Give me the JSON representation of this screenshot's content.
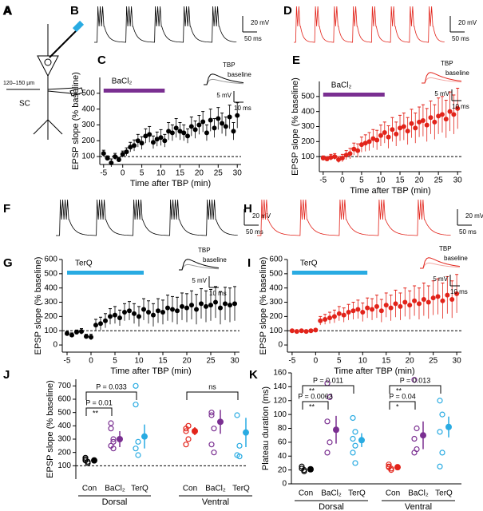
{
  "schematic": {
    "letter": "A",
    "distance": "120–150 µm",
    "region": "SC"
  },
  "traces": [
    {
      "letter": "B",
      "color": "#000000",
      "scale_y": "20 mV",
      "scale_x": "50 ms"
    },
    {
      "letter": "D",
      "color": "#e2231a",
      "scale_y": "20 mV",
      "scale_x": "50 ms"
    },
    {
      "letter": "F",
      "color": "#000000",
      "scale_y": "20 mV",
      "scale_x": "50 ms"
    },
    {
      "letter": "H",
      "color": "#e2231a",
      "scale_y": "20 mV",
      "scale_x": "50 ms"
    }
  ],
  "chart_data": [
    {
      "type": "scatter",
      "letter": "C",
      "color": "#000000",
      "xlabel": "Time after TBP (min)",
      "ylabel": "EPSP slope (% baseline)",
      "x": [
        -5,
        -4,
        -3,
        -2,
        -1,
        0,
        1,
        2,
        3,
        4,
        5,
        6,
        7,
        8,
        9,
        10,
        11,
        12,
        13,
        14,
        15,
        16,
        17,
        18,
        19,
        20,
        21,
        22,
        23,
        24,
        25,
        26,
        27,
        28,
        29,
        30
      ],
      "values": [
        120,
        90,
        60,
        100,
        80,
        115,
        130,
        160,
        170,
        200,
        185,
        230,
        240,
        190,
        210,
        220,
        200,
        260,
        250,
        280,
        260,
        250,
        230,
        290,
        270,
        300,
        320,
        250,
        330,
        280,
        340,
        310,
        290,
        350,
        260,
        360
      ],
      "errors": [
        20,
        15,
        25,
        20,
        15,
        20,
        25,
        30,
        35,
        40,
        40,
        45,
        50,
        40,
        45,
        50,
        40,
        55,
        50,
        60,
        55,
        50,
        45,
        60,
        55,
        60,
        65,
        50,
        70,
        60,
        70,
        65,
        60,
        75,
        55,
        80
      ],
      "xlim": [
        -6,
        31
      ],
      "xticks": [
        -5,
        0,
        5,
        10,
        15,
        20,
        25,
        30
      ],
      "ylim": [
        50,
        600
      ],
      "yticks": [
        100,
        200,
        300,
        400,
        500
      ],
      "reference_line": 100,
      "drug": {
        "label": "BaCl₂",
        "x": [
          -5,
          11
        ],
        "color": "#7a2f91"
      },
      "inset": {
        "labels": [
          "TBP",
          "baseline"
        ],
        "scale_y": "5 mV",
        "scale_x": "10 ms"
      }
    },
    {
      "type": "scatter",
      "letter": "E",
      "color": "#e2231a",
      "xlabel": "Time after TBP (min)",
      "ylabel": "EPSP slope (% baseline)",
      "x": [
        -5,
        -4,
        -3,
        -2,
        -1,
        0,
        1,
        2,
        3,
        4,
        5,
        6,
        7,
        8,
        9,
        10,
        11,
        12,
        13,
        14,
        15,
        16,
        17,
        18,
        19,
        20,
        21,
        22,
        23,
        24,
        25,
        26,
        27,
        28,
        29,
        30
      ],
      "values": [
        90,
        85,
        95,
        100,
        80,
        90,
        110,
        120,
        150,
        140,
        180,
        190,
        200,
        220,
        210,
        240,
        260,
        230,
        280,
        250,
        290,
        300,
        270,
        320,
        290,
        330,
        340,
        310,
        360,
        330,
        370,
        380,
        350,
        400,
        380,
        420
      ],
      "errors": [
        15,
        15,
        20,
        20,
        20,
        25,
        30,
        35,
        40,
        45,
        50,
        55,
        60,
        60,
        65,
        70,
        70,
        75,
        80,
        80,
        85,
        90,
        90,
        95,
        100,
        100,
        105,
        110,
        110,
        115,
        120,
        120,
        125,
        130,
        130,
        135
      ],
      "xlim": [
        -6,
        31
      ],
      "xticks": [
        -5,
        0,
        5,
        10,
        15,
        20,
        25,
        30
      ],
      "ylim": [
        0,
        600
      ],
      "yticks": [
        100,
        200,
        300,
        400,
        500
      ],
      "reference_line": 100,
      "drug": {
        "label": "BaCl₂",
        "x": [
          -5,
          11
        ],
        "color": "#7a2f91"
      },
      "inset": {
        "labels": [
          "TBP",
          "baseline"
        ],
        "scale_y": "5 mV",
        "scale_x": "10 ms"
      }
    },
    {
      "type": "scatter",
      "letter": "G",
      "color": "#000000",
      "xlabel": "Time after TBP (min)",
      "ylabel": "EPSP slope (% baseline)",
      "x": [
        -5,
        -4,
        -3,
        -2,
        -1,
        0,
        1,
        2,
        3,
        4,
        5,
        6,
        7,
        8,
        9,
        10,
        11,
        12,
        13,
        14,
        15,
        16,
        17,
        18,
        19,
        20,
        21,
        22,
        23,
        24,
        25,
        26,
        27,
        28,
        29,
        30
      ],
      "values": [
        80,
        70,
        90,
        95,
        60,
        55,
        140,
        150,
        170,
        200,
        210,
        190,
        230,
        240,
        220,
        200,
        250,
        230,
        210,
        240,
        230,
        260,
        250,
        240,
        270,
        260,
        280,
        250,
        290,
        270,
        280,
        300,
        260,
        290,
        280,
        290
      ],
      "errors": [
        15,
        15,
        15,
        20,
        15,
        20,
        40,
        45,
        50,
        55,
        60,
        55,
        60,
        65,
        70,
        70,
        75,
        80,
        80,
        85,
        85,
        90,
        90,
        95,
        95,
        100,
        100,
        105,
        105,
        110,
        110,
        110,
        115,
        115,
        120,
        120
      ],
      "xlim": [
        -6,
        31
      ],
      "xticks": [
        -5,
        0,
        5,
        10,
        15,
        20,
        25,
        30
      ],
      "ylim": [
        -50,
        600
      ],
      "yticks": [
        0,
        100,
        200,
        300,
        400,
        500,
        600
      ],
      "reference_line": 100,
      "drug": {
        "label": "TerQ",
        "x": [
          -5,
          11
        ],
        "color": "#29abe2"
      },
      "inset": {
        "labels": [
          "TBP",
          "baseline"
        ],
        "scale_y": "5 mV",
        "scale_x": "10 ms"
      }
    },
    {
      "type": "scatter",
      "letter": "I",
      "color": "#e2231a",
      "xlabel": "Time after TBP (min)",
      "ylabel": "EPSP slope (% baseline)",
      "x": [
        -5,
        -4,
        -3,
        -2,
        -1,
        0,
        1,
        2,
        3,
        4,
        5,
        6,
        7,
        8,
        9,
        10,
        11,
        12,
        13,
        14,
        15,
        16,
        17,
        18,
        19,
        20,
        21,
        22,
        23,
        24,
        25,
        26,
        27,
        28,
        29,
        30
      ],
      "values": [
        100,
        95,
        100,
        95,
        100,
        105,
        170,
        180,
        190,
        200,
        220,
        210,
        230,
        240,
        250,
        230,
        260,
        250,
        270,
        240,
        280,
        260,
        290,
        270,
        300,
        280,
        310,
        290,
        320,
        300,
        330,
        340,
        310,
        350,
        320,
        360
      ],
      "errors": [
        10,
        10,
        10,
        10,
        10,
        10,
        30,
        35,
        40,
        45,
        50,
        50,
        55,
        60,
        65,
        65,
        70,
        75,
        80,
        80,
        85,
        90,
        95,
        95,
        100,
        100,
        105,
        110,
        115,
        115,
        120,
        125,
        125,
        130,
        130,
        135
      ],
      "xlim": [
        -6,
        31
      ],
      "xticks": [
        -5,
        0,
        5,
        10,
        15,
        20,
        25,
        30
      ],
      "ylim": [
        -50,
        600
      ],
      "yticks": [
        0,
        100,
        200,
        300,
        400,
        500,
        600
      ],
      "reference_line": 100,
      "drug": {
        "label": "TerQ",
        "x": [
          -5,
          11
        ],
        "color": "#29abe2"
      },
      "inset": {
        "labels": [
          "TBP",
          "baseline"
        ],
        "scale_y": "5 mV",
        "scale_x": "10 ms"
      }
    },
    {
      "type": "dot",
      "letter": "J",
      "ylabel": "EPSP slope (% baseline)",
      "ylim": [
        0,
        750
      ],
      "yticks": [
        100,
        200,
        300,
        400,
        500,
        600,
        700
      ],
      "reference_line": 100,
      "groups": [
        {
          "name": "Dorsal",
          "color": "#000000",
          "categories": [
            "Con",
            "BaCl₂",
            "TerQ"
          ],
          "colors": [
            "#000000",
            "#7a2f91",
            "#29abe2"
          ],
          "points": [
            [
              150,
              130,
              160,
              120,
              140
            ],
            [
              380,
              300,
              250,
              230,
              420,
              280
            ],
            [
              700,
              280,
              230,
              180,
              560
            ]
          ],
          "means": [
            140,
            300,
            320
          ],
          "errors": [
            10,
            60,
            90
          ],
          "comparisons": [
            {
              "label": "P = 0.033",
              "between": [
                0,
                2
              ]
            },
            {
              "label": "P = 0.01",
              "stars": "**",
              "between": [
                0,
                1
              ]
            }
          ]
        },
        {
          "name": "Ventral",
          "color": "#e2231a",
          "categories": [
            "Con",
            "BaCl₂",
            "TerQ"
          ],
          "colors": [
            "#e2231a",
            "#7a2f91",
            "#29abe2"
          ],
          "points": [
            [
              380,
              300,
              360,
              400,
              260
            ],
            [
              500,
              380,
              260,
              200,
              480
            ],
            [
              480,
              250,
              180,
              170
            ]
          ],
          "means": [
            360,
            430,
            350
          ],
          "errors": [
            30,
            90,
            110
          ],
          "comparisons": [
            {
              "label": "ns",
              "between": [
                0,
                2
              ]
            }
          ]
        }
      ]
    },
    {
      "type": "dot",
      "letter": "K",
      "ylabel": "Plateau duration (ms)",
      "ylim": [
        0,
        160
      ],
      "yticks": [
        0,
        20,
        40,
        60,
        80,
        100,
        120,
        140,
        160
      ],
      "groups": [
        {
          "name": "Dorsal",
          "color": "#000000",
          "categories": [
            "Con",
            "BaCl₂",
            "TerQ"
          ],
          "colors": [
            "#000000",
            "#7a2f91",
            "#29abe2"
          ],
          "points": [
            [
              22,
              18,
              25,
              20
            ],
            [
              145,
              125,
              90,
              60,
              45
            ],
            [
              95,
              75,
              65,
              55,
              45,
              30
            ]
          ],
          "means": [
            21,
            78,
            63
          ],
          "errors": [
            2,
            20,
            10
          ],
          "comparisons": [
            {
              "label": "P = 0.011",
              "stars": "**",
              "between": [
                0,
                2
              ]
            },
            {
              "label": "P = 0.0063",
              "stars": "**",
              "between": [
                0,
                1
              ]
            }
          ]
        },
        {
          "name": "Ventral",
          "color": "#e2231a",
          "categories": [
            "Con",
            "BaCl₂",
            "TerQ"
          ],
          "colors": [
            "#e2231a",
            "#7a2f91",
            "#29abe2"
          ],
          "points": [
            [
              25,
              22,
              28,
              20,
              24
            ],
            [
              150,
              80,
              65,
              50,
              45
            ],
            [
              120,
              100,
              75,
              45,
              25
            ]
          ],
          "means": [
            24,
            70,
            82
          ],
          "errors": [
            2,
            20,
            15
          ],
          "comparisons": [
            {
              "label": "P = 0.013",
              "stars": "**",
              "between": [
                0,
                2
              ]
            },
            {
              "label": "P = 0.04",
              "stars": "*",
              "between": [
                0,
                1
              ]
            }
          ]
        }
      ]
    }
  ]
}
